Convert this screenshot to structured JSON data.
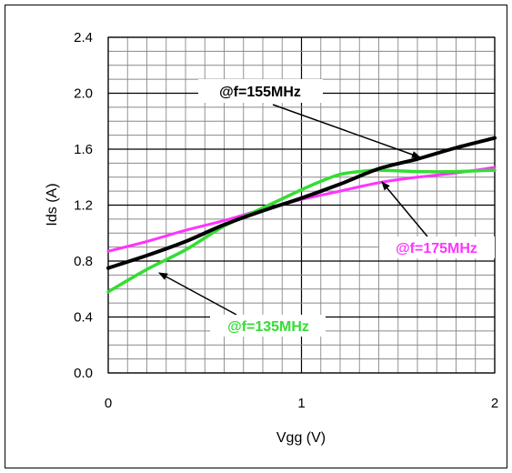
{
  "chart_data": {
    "type": "line",
    "xlabel": "Vgg (V)",
    "ylabel": "Ids (A)",
    "xlim": [
      0,
      2
    ],
    "ylim": [
      0,
      2.4
    ],
    "x_ticks": [
      "0",
      "1",
      "2"
    ],
    "y_ticks": [
      "0.0",
      "0.4",
      "0.8",
      "1.2",
      "1.6",
      "2.0",
      "2.4"
    ],
    "grid": true,
    "series": [
      {
        "name": "@f=155MHz",
        "color": "#000000",
        "x": [
          0,
          0.2,
          0.4,
          0.6,
          0.8,
          1.0,
          1.2,
          1.4,
          1.6,
          1.8,
          2.0
        ],
        "y": [
          0.75,
          0.84,
          0.94,
          1.06,
          1.16,
          1.25,
          1.35,
          1.46,
          1.53,
          1.61,
          1.68
        ]
      },
      {
        "name": "@f=175MHz",
        "color": "#ff33ff",
        "x": [
          0,
          0.2,
          0.4,
          0.6,
          0.8,
          1.0,
          1.2,
          1.4,
          1.6,
          1.8,
          2.0
        ],
        "y": [
          0.87,
          0.94,
          1.02,
          1.09,
          1.17,
          1.24,
          1.3,
          1.36,
          1.4,
          1.43,
          1.47
        ]
      },
      {
        "name": "@f=135MHz",
        "color": "#33dd33",
        "x": [
          0,
          0.2,
          0.4,
          0.6,
          0.8,
          1.0,
          1.1,
          1.2,
          1.3,
          1.4,
          1.6,
          1.8,
          2.0
        ],
        "y": [
          0.58,
          0.74,
          0.88,
          1.05,
          1.18,
          1.31,
          1.37,
          1.42,
          1.44,
          1.45,
          1.44,
          1.44,
          1.45
        ]
      }
    ],
    "annotations": [
      {
        "text": "@f=155MHz",
        "color": "#000000"
      },
      {
        "text": "@f=175MHz",
        "color": "#ff33ff"
      },
      {
        "text": "@f=135MHz",
        "color": "#33dd33"
      }
    ]
  }
}
